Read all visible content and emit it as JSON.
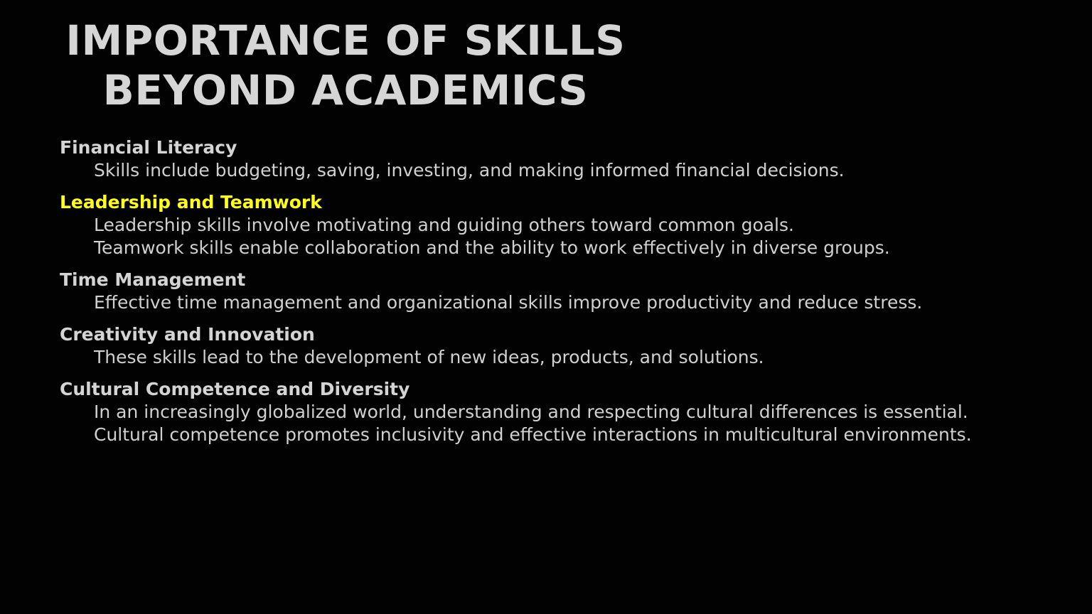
{
  "slide": {
    "title_line1": "IMPORTANCE OF SKILLS",
    "title_line2": "BEYOND ACADEMICS",
    "highlight_color": "#ffff1a",
    "text_color": "#d4d4d4",
    "background_color": "#020202",
    "sections": [
      {
        "heading": "Financial Literacy",
        "bullets": [
          "Skills include budgeting, saving, investing, and making informed financial decisions."
        ]
      },
      {
        "heading": "Leadership and Teamwork",
        "highlighted": true,
        "bullets": [
          "Leadership skills involve motivating and guiding others toward common goals.",
          "Teamwork skills enable collaboration and the ability to work effectively in diverse groups."
        ]
      },
      {
        "heading": "Time Management",
        "bullets": [
          "Effective time management and organizational skills improve productivity and reduce stress."
        ]
      },
      {
        "heading": "Creativity and Innovation",
        "bullets": [
          "These skills lead to the development of new ideas, products, and solutions."
        ]
      },
      {
        "heading": "Cultural Competence and Diversity",
        "bullets": [
          "In an increasingly globalized world, understanding and respecting cultural differences is essential.",
          "Cultural competence promotes inclusivity and effective interactions in multicultural environments."
        ]
      }
    ]
  }
}
